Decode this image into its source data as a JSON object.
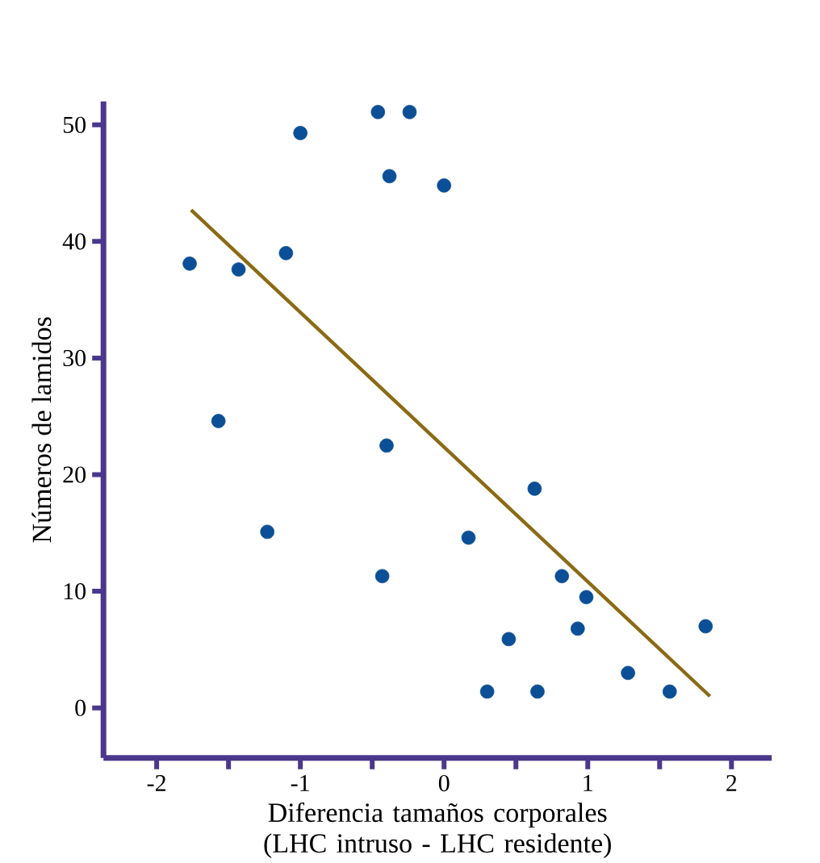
{
  "chart_data": {
    "type": "scatter",
    "xlabel": "Diferencia tamaños corporales (LHC intruso - LHC residente)",
    "ylabel": "Números de lamidos",
    "xlim": [
      -2.37,
      2.28
    ],
    "ylim": [
      -4.3,
      52
    ],
    "xticks": [
      -2,
      {
        "value": -1.5,
        "label": null
      },
      -1,
      {
        "value": -0.5,
        "label": null
      },
      0,
      {
        "value": 0.5,
        "label": null
      },
      1,
      {
        "value": 1.5,
        "label": null
      },
      2
    ],
    "yticks": [
      0,
      10,
      20,
      30,
      40,
      50
    ],
    "grid": false,
    "series": [
      {
        "type": "scatter",
        "marker": "circle",
        "color": "#0b4f96",
        "x": [
          -1.77,
          -1.43,
          -1.1,
          -1.0,
          -0.46,
          -0.24,
          -0.38,
          0.0,
          -1.57,
          -0.4,
          -1.23,
          -0.43,
          0.17,
          0.63,
          0.82,
          0.99,
          0.45,
          0.93,
          0.3,
          0.65,
          1.28,
          1.57,
          1.82
        ],
        "values": [
          38.1,
          37.6,
          39.0,
          49.3,
          51.1,
          51.1,
          45.6,
          44.8,
          24.6,
          22.5,
          15.1,
          11.3,
          14.6,
          18.8,
          11.3,
          9.5,
          5.9,
          6.8,
          1.4,
          1.4,
          3.0,
          1.4,
          7.0
        ]
      },
      {
        "type": "line",
        "marker": "none",
        "line_style": "solid",
        "color": "#8b6a14",
        "x": [
          -1.76,
          1.85
        ],
        "values": [
          42.7,
          1.0
        ]
      }
    ]
  }
}
